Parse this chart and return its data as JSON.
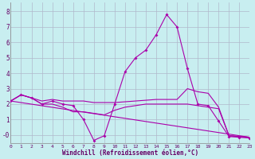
{
  "xlabel": "Windchill (Refroidissement éolien,°C)",
  "xlim": [
    0,
    23
  ],
  "ylim": [
    -0.55,
    8.6
  ],
  "background_color": "#c8eef0",
  "grid_color": "#b0b8cc",
  "line_color": "#aa00aa",
  "line1_x": [
    0,
    1,
    2,
    3,
    4,
    5,
    6,
    7,
    8,
    9,
    10,
    11,
    12,
    13,
    14,
    15,
    16,
    17,
    18,
    19,
    20,
    21,
    22,
    23
  ],
  "line1_y": [
    2.2,
    2.6,
    2.4,
    2.0,
    2.2,
    2.0,
    1.9,
    1.0,
    -0.35,
    -0.05,
    2.0,
    4.1,
    5.0,
    5.5,
    6.5,
    7.8,
    7.0,
    4.3,
    2.0,
    1.9,
    0.9,
    -0.1,
    -0.15,
    -0.2
  ],
  "line2_x": [
    0,
    1,
    2,
    3,
    4,
    5,
    6,
    7,
    8,
    9,
    10,
    11,
    12,
    13,
    14,
    15,
    16,
    17,
    18,
    19,
    20,
    21,
    22,
    23
  ],
  "line2_y": [
    2.2,
    2.6,
    2.4,
    2.2,
    2.3,
    2.2,
    2.2,
    2.2,
    2.1,
    2.1,
    2.1,
    2.15,
    2.2,
    2.25,
    2.3,
    2.3,
    2.3,
    3.0,
    2.8,
    2.7,
    1.8,
    -0.05,
    -0.1,
    -0.15
  ],
  "line3_x": [
    0,
    1,
    2,
    3,
    4,
    5,
    6,
    7,
    8,
    9,
    10,
    11,
    12,
    13,
    14,
    15,
    16,
    17,
    18,
    19,
    20,
    21,
    22,
    23
  ],
  "line3_y": [
    2.2,
    2.6,
    2.4,
    2.0,
    2.0,
    1.8,
    1.5,
    1.5,
    1.4,
    1.3,
    1.6,
    1.8,
    1.9,
    2.0,
    2.0,
    2.0,
    2.0,
    2.0,
    1.9,
    1.8,
    1.7,
    -0.05,
    -0.1,
    -0.15
  ],
  "line4_x": [
    0,
    23
  ],
  "line4_y": [
    2.2,
    -0.15
  ]
}
